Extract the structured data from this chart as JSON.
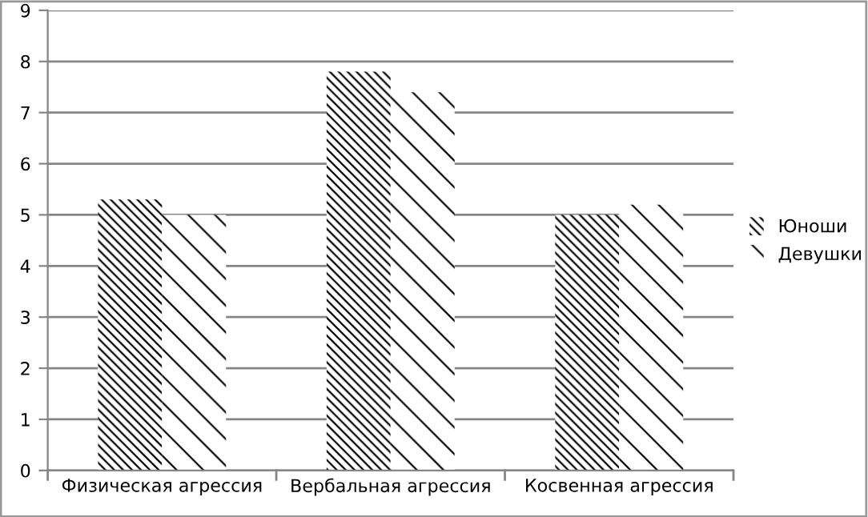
{
  "chart_data": {
    "type": "bar",
    "categories": [
      "Физическая агрессия",
      "Вербальная агрессия",
      "Косвенная агрессия"
    ],
    "series": [
      {
        "name": "Юноши",
        "color": "#000000",
        "values": [
          5.3,
          7.8,
          5.0
        ]
      },
      {
        "name": "Девушки",
        "color": "#000000",
        "values": [
          5.0,
          7.4,
          5.2
        ]
      }
    ],
    "ylim": [
      0,
      9
    ],
    "yticks": [
      0,
      1,
      2,
      3,
      4,
      5,
      6,
      7,
      8,
      9
    ],
    "grid": "y",
    "legend": "right"
  }
}
